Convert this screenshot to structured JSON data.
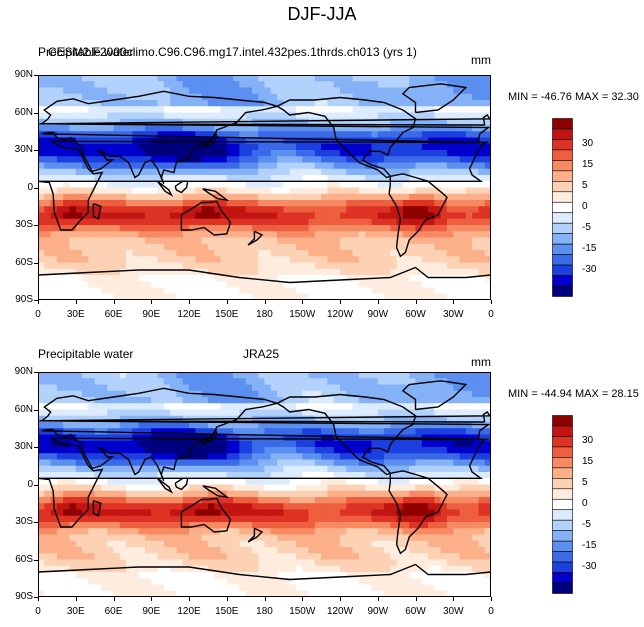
{
  "title": "DJF-JJA",
  "colors": {
    "levels": [
      "#00007f",
      "#0000cc",
      "#1c3fe0",
      "#3b6ae8",
      "#5b8ff0",
      "#85b2f7",
      "#b2d2fb",
      "#dcebfd",
      "#ffffff",
      "#feeddf",
      "#fdd1b3",
      "#fbb08a",
      "#f68b63",
      "#ee5f3f",
      "#dd3324",
      "#c21411",
      "#8e0000"
    ],
    "coast": "#000000"
  },
  "panels": [
    {
      "id": "top",
      "left_text": "Precipitable water",
      "center_text": "CESM2.F2000climo.C96.C96.mg17.intel.432pes.1thrds.ch013 (yrs 1)",
      "right_text": "mm",
      "stats": "MIN = -46.76 MAX =  32.30"
    },
    {
      "id": "bottom",
      "left_text": "Precipitable water",
      "center_text": "JRA25",
      "right_text": "mm",
      "stats": "MIN = -44.94 MAX =  28.15"
    }
  ],
  "axes": {
    "lat_labels": [
      "90N",
      "60N",
      "30N",
      "0",
      "30S",
      "60S",
      "90S"
    ],
    "lon_labels": [
      "0",
      "30E",
      "60E",
      "90E",
      "120E",
      "150E",
      "180",
      "150W",
      "120W",
      "90W",
      "60W",
      "30W",
      "0"
    ]
  },
  "colorbar": {
    "labels": [
      "30",
      "15",
      "5",
      "0",
      "-5",
      "-15",
      "-30"
    ]
  }
}
